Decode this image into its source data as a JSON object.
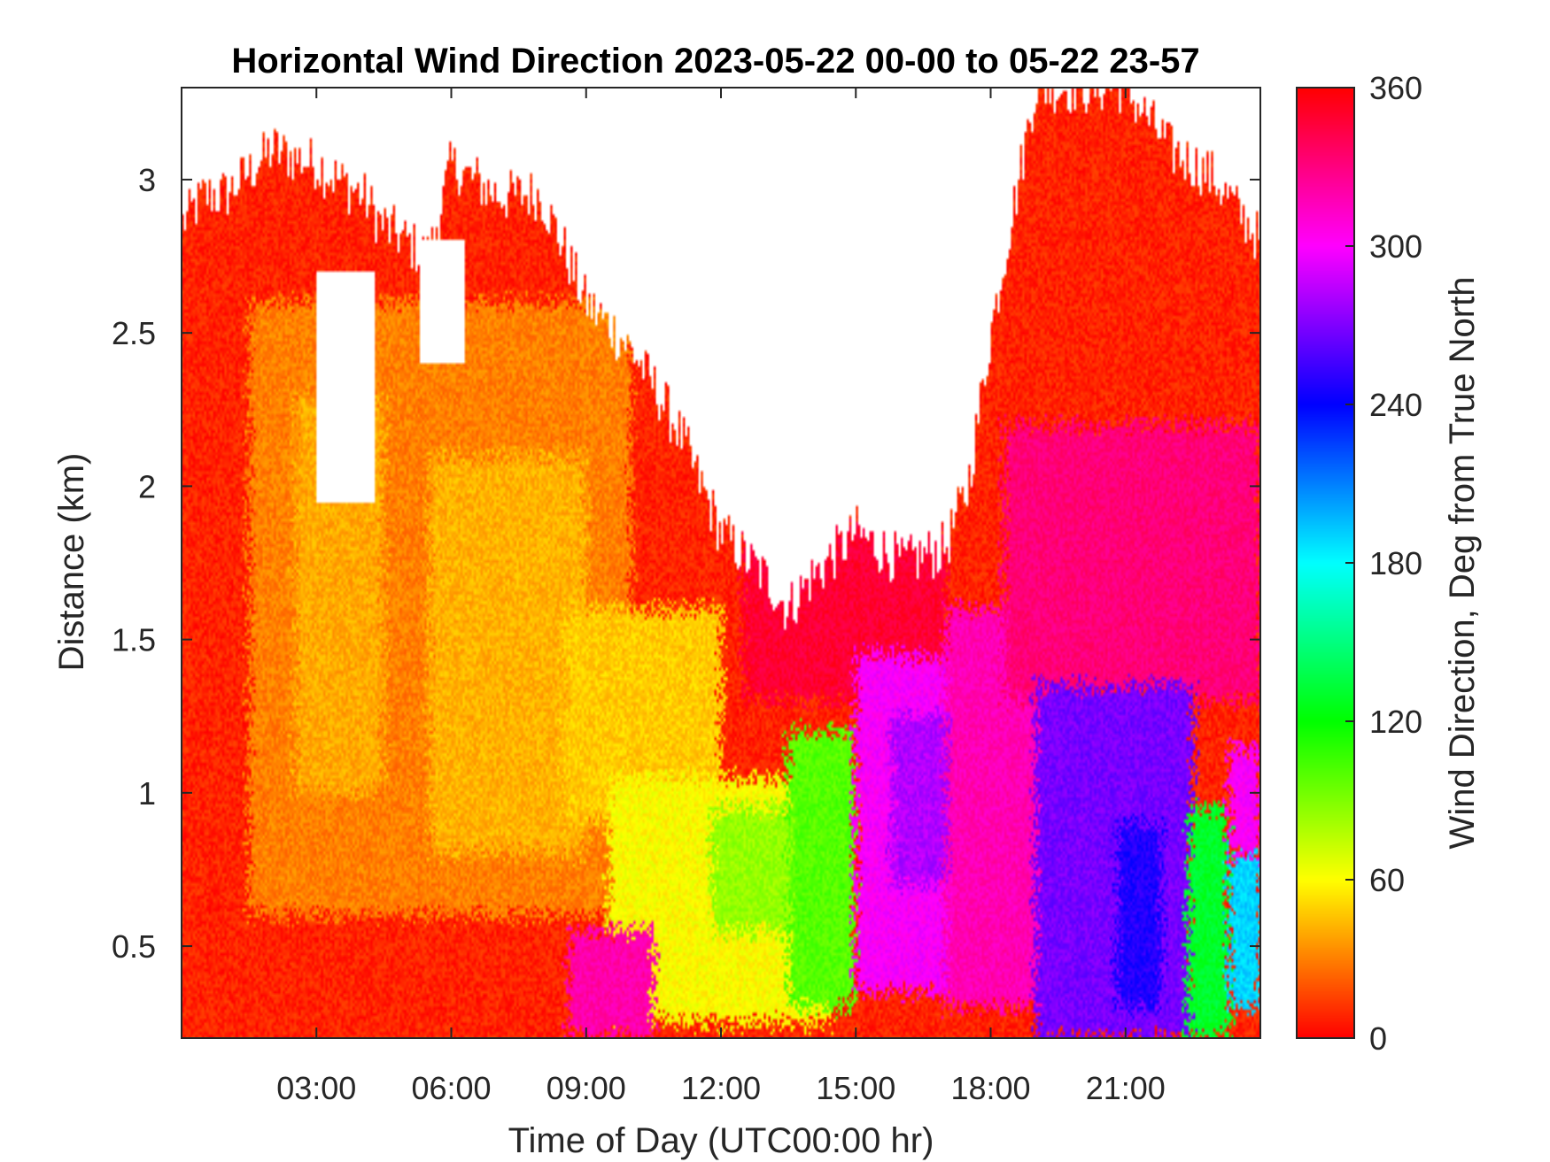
{
  "chart_data": {
    "type": "heatmap",
    "title": "Horizontal Wind Direction 2023-05-22 00-00 to 05-22 23-57",
    "xlabel": "Time of Day (UTC00:00 hr)",
    "ylabel": "Distance (km)",
    "colorbar_label": "Wind Direction, Deg from True North",
    "xlim_hours": [
      0,
      24
    ],
    "ylim_km": [
      0.2,
      3.3
    ],
    "clim_deg": [
      0,
      360
    ],
    "x_ticks": [
      {
        "hour": 3,
        "label": "03:00"
      },
      {
        "hour": 6,
        "label": "06:00"
      },
      {
        "hour": 9,
        "label": "09:00"
      },
      {
        "hour": 12,
        "label": "12:00"
      },
      {
        "hour": 15,
        "label": "15:00"
      },
      {
        "hour": 18,
        "label": "18:00"
      },
      {
        "hour": 21,
        "label": "21:00"
      }
    ],
    "y_ticks": [
      {
        "km": 0.5,
        "label": "0.5"
      },
      {
        "km": 1,
        "label": "1"
      },
      {
        "km": 1.5,
        "label": "1.5"
      },
      {
        "km": 2,
        "label": "2"
      },
      {
        "km": 2.5,
        "label": "2.5"
      },
      {
        "km": 3,
        "label": "3"
      }
    ],
    "colorbar_ticks": [
      {
        "deg": 0,
        "label": "0"
      },
      {
        "deg": 60,
        "label": "60"
      },
      {
        "deg": 120,
        "label": "120"
      },
      {
        "deg": 180,
        "label": "180"
      },
      {
        "deg": 240,
        "label": "240"
      },
      {
        "deg": 300,
        "label": "300"
      },
      {
        "deg": 360,
        "label": "360"
      }
    ],
    "colormap": "hsv",
    "missing_color": "#ffffff",
    "data_top_km_by_hour": {
      "hours": [
        0,
        0.5,
        1,
        2,
        3,
        4,
        4.5,
        5.5,
        6,
        7,
        8,
        9,
        10,
        11,
        12,
        13,
        13.5,
        14,
        15,
        16,
        17,
        17.5,
        18,
        18.5,
        19,
        20,
        21,
        22,
        23,
        24
      ],
      "km": [
        2.85,
        2.95,
        2.95,
        3.1,
        3.05,
        2.95,
        2.85,
        2.75,
        3.05,
        2.95,
        2.95,
        2.6,
        2.45,
        2.2,
        1.85,
        1.7,
        1.6,
        1.7,
        1.85,
        1.75,
        1.8,
        2.0,
        2.5,
        2.9,
        3.3,
        3.3,
        3.3,
        3.1,
        3.0,
        2.8
      ]
    },
    "gaps_km": [
      {
        "hours": [
          3.0,
          4.3
        ],
        "km": [
          1.95,
          2.7
        ]
      },
      {
        "hours": [
          5.3,
          6.3
        ],
        "km": [
          2.4,
          2.8
        ]
      }
    ],
    "regions": [
      {
        "hours": [
          0,
          24
        ],
        "km": [
          0.2,
          3.3
        ],
        "deg": 8
      },
      {
        "hours": [
          1.5,
          10
        ],
        "km": [
          0.6,
          2.6
        ],
        "deg": 30
      },
      {
        "hours": [
          2.5,
          4.5
        ],
        "km": [
          1.0,
          2.3
        ],
        "deg": 40
      },
      {
        "hours": [
          5.5,
          9
        ],
        "km": [
          0.8,
          2.1
        ],
        "deg": 42
      },
      {
        "hours": [
          8.5,
          12
        ],
        "km": [
          0.9,
          1.6
        ],
        "deg": 48
      },
      {
        "hours": [
          9.5,
          14.5
        ],
        "km": [
          0.25,
          1.05
        ],
        "deg": 60
      },
      {
        "hours": [
          11.8,
          13.8
        ],
        "km": [
          0.55,
          0.95
        ],
        "deg": 85
      },
      {
        "hours": [
          13.5,
          15
        ],
        "km": [
          0.3,
          1.2
        ],
        "deg": 100
      },
      {
        "hours": [
          8.6,
          10.5
        ],
        "km": [
          0.2,
          0.55
        ],
        "deg": 320
      },
      {
        "hours": [
          12.5,
          17
        ],
        "km": [
          1.3,
          1.9
        ],
        "deg": 348
      },
      {
        "hours": [
          15,
          17.8
        ],
        "km": [
          0.35,
          1.45
        ],
        "deg": 300
      },
      {
        "hours": [
          15.8,
          17.3
        ],
        "km": [
          0.7,
          1.25
        ],
        "deg": 282
      },
      {
        "hours": [
          17,
          19.5
        ],
        "km": [
          0.3,
          1.6
        ],
        "deg": 318
      },
      {
        "hours": [
          18.3,
          24
        ],
        "km": [
          1.3,
          2.2
        ],
        "deg": 332
      },
      {
        "hours": [
          19,
          22.5
        ],
        "km": [
          0.2,
          1.35
        ],
        "deg": 268
      },
      {
        "hours": [
          20.8,
          21.8
        ],
        "km": [
          0.3,
          0.9
        ],
        "deg": 248
      },
      {
        "hours": [
          22.4,
          23.3
        ],
        "km": [
          0.2,
          0.95
        ],
        "deg": 130
      },
      {
        "hours": [
          23.3,
          24
        ],
        "km": [
          0.3,
          0.8
        ],
        "deg": 190
      },
      {
        "hours": [
          23.3,
          24
        ],
        "km": [
          0.8,
          1.15
        ],
        "deg": 300
      }
    ]
  }
}
